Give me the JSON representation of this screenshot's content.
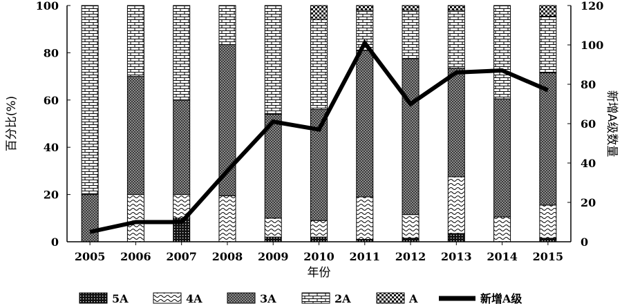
{
  "chart_data": {
    "type": "bar",
    "stacked": true,
    "categories": [
      "2005",
      "2006",
      "2007",
      "2008",
      "2009",
      "2010",
      "2011",
      "2012",
      "2013",
      "2014",
      "2015"
    ],
    "series": [
      {
        "name": "5A",
        "pattern": "dots-dark",
        "values": [
          0,
          0,
          10,
          0,
          2,
          2,
          1,
          1.5,
          3.5,
          0,
          1.5
        ]
      },
      {
        "name": "4A",
        "pattern": "waves",
        "values": [
          0,
          20,
          10,
          19.5,
          8,
          7,
          18,
          10,
          24,
          10.5,
          14
        ]
      },
      {
        "name": "3A",
        "pattern": "crosshatch",
        "values": [
          20,
          50,
          40,
          64,
          44,
          47,
          62,
          66,
          46,
          50,
          56
        ]
      },
      {
        "name": "2A",
        "pattern": "bricks",
        "values": [
          80,
          30,
          40,
          16.5,
          46,
          38,
          17,
          20.5,
          24.5,
          39.5,
          24
        ]
      },
      {
        "name": "A",
        "pattern": "checker",
        "values": [
          0,
          0,
          0,
          0,
          0,
          6,
          2,
          2,
          2,
          0,
          4.5
        ]
      }
    ],
    "line": {
      "name": "新增A级",
      "axis": "right",
      "values": [
        5,
        10,
        10,
        36,
        61,
        57,
        101,
        70,
        86,
        87,
        77
      ]
    },
    "xlabel": "年份",
    "ylabel": "百分比(%)",
    "y2label": "新增A级数量",
    "ylim": [
      0,
      100
    ],
    "y2lim": [
      0,
      120
    ],
    "yticks": [
      0,
      20,
      40,
      60,
      80,
      100
    ],
    "y2ticks": [
      0,
      20,
      40,
      60,
      80,
      100,
      120
    ],
    "legend_position": "bottom",
    "grid": false
  }
}
